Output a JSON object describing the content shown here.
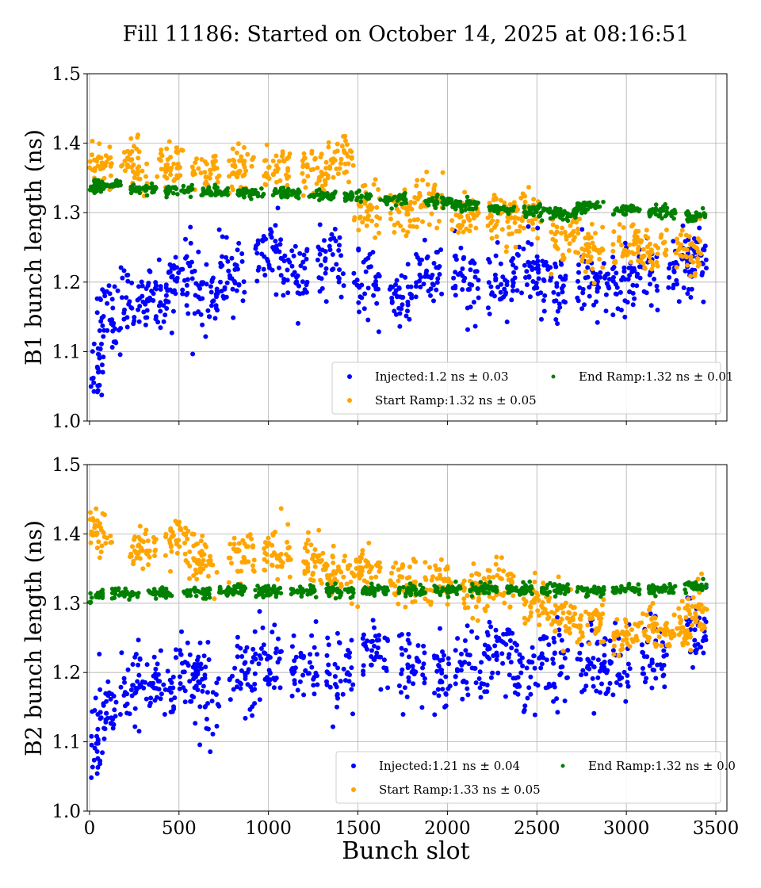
{
  "chart_data": {
    "title": "Fill 11186: Started on October 14, 2025 at 08:16:51",
    "xlabel": "Bunch slot",
    "xlim": [
      -13,
      3562
    ],
    "xticks": [
      0,
      500,
      1000,
      1500,
      2000,
      2500,
      3000,
      3500
    ],
    "colors": {
      "Injected": "#0000ff",
      "Start Ramp": "#ffa500",
      "End Ramp": "#008000"
    },
    "panels": [
      {
        "type": "scatter",
        "ylabel": "B1 bunch length (ns)",
        "ylim": [
          1.0,
          1.5
        ],
        "yticks": [
          1.0,
          1.1,
          1.2,
          1.3,
          1.4,
          1.5
        ],
        "grid": true,
        "legend_placement": "lower-right",
        "series": [
          {
            "name": "Injected",
            "legend": "Injected:1.2 ns ± 0.03",
            "spread": 0.03,
            "points": [
              [
                0,
                1.08
              ],
              [
                100,
                1.15
              ],
              [
                250,
                1.17
              ],
              [
                400,
                1.18
              ],
              [
                500,
                1.21
              ],
              [
                650,
                1.18
              ],
              [
                800,
                1.21
              ],
              [
                1000,
                1.24
              ],
              [
                1150,
                1.21
              ],
              [
                1350,
                1.23
              ],
              [
                1550,
                1.19
              ],
              [
                1750,
                1.18
              ],
              [
                1900,
                1.21
              ],
              [
                2100,
                1.2
              ],
              [
                2300,
                1.2
              ],
              [
                2450,
                1.22
              ],
              [
                2600,
                1.19
              ],
              [
                2800,
                1.2
              ],
              [
                2950,
                1.2
              ],
              [
                3100,
                1.21
              ],
              [
                3300,
                1.22
              ],
              [
                3400,
                1.24
              ]
            ]
          },
          {
            "name": "Start Ramp",
            "legend": "Start Ramp:1.32 ns ± 0.05",
            "spread": 0.022,
            "points": [
              [
                50,
                1.37
              ],
              [
                250,
                1.37
              ],
              [
                450,
                1.37
              ],
              [
                650,
                1.35
              ],
              [
                850,
                1.36
              ],
              [
                1050,
                1.36
              ],
              [
                1250,
                1.36
              ],
              [
                1400,
                1.37
              ],
              [
                1550,
                1.31
              ],
              [
                1750,
                1.3
              ],
              [
                1900,
                1.32
              ],
              [
                2100,
                1.29
              ],
              [
                2300,
                1.29
              ],
              [
                2450,
                1.3
              ],
              [
                2650,
                1.27
              ],
              [
                2800,
                1.25
              ],
              [
                3000,
                1.25
              ],
              [
                3150,
                1.24
              ],
              [
                3350,
                1.25
              ]
            ]
          },
          {
            "name": "End Ramp",
            "legend": "End Ramp:1.32 ns ± 0.01",
            "spread": 0.004,
            "points": [
              [
                10,
                1.335
              ],
              [
                100,
                1.34
              ],
              [
                300,
                1.333
              ],
              [
                500,
                1.332
              ],
              [
                700,
                1.33
              ],
              [
                900,
                1.328
              ],
              [
                1100,
                1.328
              ],
              [
                1300,
                1.325
              ],
              [
                1500,
                1.322
              ],
              [
                1700,
                1.318
              ],
              [
                1950,
                1.315
              ],
              [
                2100,
                1.31
              ],
              [
                2300,
                1.305
              ],
              [
                2500,
                1.302
              ],
              [
                2650,
                1.298
              ],
              [
                2800,
                1.31
              ],
              [
                3000,
                1.305
              ],
              [
                3200,
                1.302
              ],
              [
                3400,
                1.295
              ]
            ]
          }
        ]
      },
      {
        "type": "scatter",
        "ylabel": "B2 bunch length (ns)",
        "ylim": [
          1.0,
          1.5
        ],
        "yticks": [
          1.0,
          1.1,
          1.2,
          1.3,
          1.4,
          1.5
        ],
        "grid": true,
        "legend_placement": "lower-right",
        "series": [
          {
            "name": "Injected",
            "legend": "Injected:1.21 ns ± 0.04",
            "spread": 0.035,
            "points": [
              [
                0,
                1.1
              ],
              [
                100,
                1.15
              ],
              [
                250,
                1.18
              ],
              [
                400,
                1.18
              ],
              [
                550,
                1.2
              ],
              [
                650,
                1.17
              ],
              [
                850,
                1.2
              ],
              [
                1000,
                1.22
              ],
              [
                1200,
                1.2
              ],
              [
                1400,
                1.2
              ],
              [
                1600,
                1.22
              ],
              [
                1800,
                1.21
              ],
              [
                2000,
                1.2
              ],
              [
                2150,
                1.21
              ],
              [
                2300,
                1.23
              ],
              [
                2450,
                1.2
              ],
              [
                2600,
                1.21
              ],
              [
                2800,
                1.21
              ],
              [
                2950,
                1.21
              ],
              [
                3150,
                1.22
              ],
              [
                3400,
                1.26
              ]
            ]
          },
          {
            "name": "Start Ramp",
            "legend": "Start Ramp:1.33 ns ± 0.05",
            "spread": 0.022,
            "points": [
              [
                50,
                1.4
              ],
              [
                300,
                1.38
              ],
              [
                500,
                1.39
              ],
              [
                650,
                1.36
              ],
              [
                850,
                1.37
              ],
              [
                1050,
                1.37
              ],
              [
                1250,
                1.36
              ],
              [
                1400,
                1.34
              ],
              [
                1550,
                1.35
              ],
              [
                1750,
                1.33
              ],
              [
                1950,
                1.33
              ],
              [
                2150,
                1.32
              ],
              [
                2300,
                1.33
              ],
              [
                2500,
                1.3
              ],
              [
                2650,
                1.28
              ],
              [
                2800,
                1.27
              ],
              [
                3000,
                1.25
              ],
              [
                3150,
                1.26
              ],
              [
                3300,
                1.26
              ],
              [
                3400,
                1.29
              ]
            ]
          },
          {
            "name": "End Ramp",
            "legend": "End Ramp:1.32 ns ± 0.0",
            "spread": 0.004,
            "points": [
              [
                0,
                1.31
              ],
              [
                200,
                1.313
              ],
              [
                400,
                1.315
              ],
              [
                600,
                1.316
              ],
              [
                800,
                1.317
              ],
              [
                1000,
                1.317
              ],
              [
                1200,
                1.317
              ],
              [
                1400,
                1.318
              ],
              [
                1600,
                1.318
              ],
              [
                1800,
                1.319
              ],
              [
                2000,
                1.32
              ],
              [
                2200,
                1.32
              ],
              [
                2400,
                1.32
              ],
              [
                2600,
                1.32
              ],
              [
                2800,
                1.318
              ],
              [
                3000,
                1.32
              ],
              [
                3200,
                1.32
              ],
              [
                3400,
                1.325
              ]
            ]
          }
        ]
      }
    ]
  }
}
